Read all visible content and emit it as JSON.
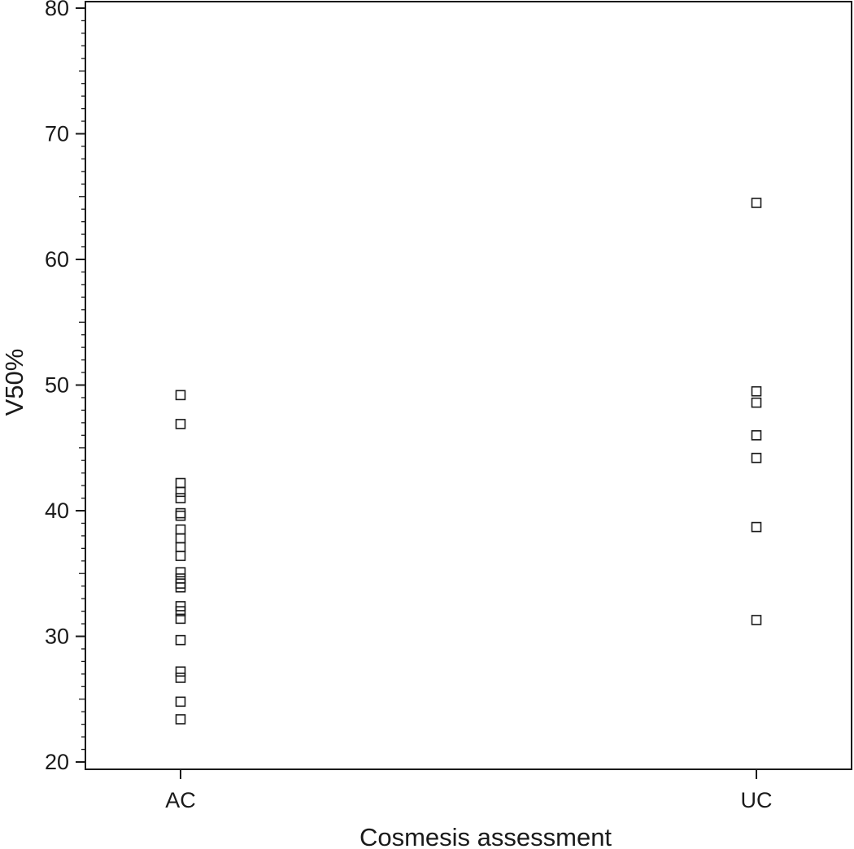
{
  "chart_data": {
    "type": "scatter",
    "title": "",
    "xlabel": "Cosmesis assessment",
    "ylabel": "V50%",
    "categories": [
      "AC",
      "UC"
    ],
    "ylim": [
      20,
      80
    ],
    "yticks": [
      20,
      30,
      40,
      50,
      60,
      70,
      80
    ],
    "grid": false,
    "marker": "open-square",
    "colors": {
      "marker": "#1a1a1a",
      "axis": "#1a1a1a",
      "background": "#ffffff"
    },
    "series": [
      {
        "category": "AC",
        "values": [
          49.2,
          46.9,
          42.2,
          41.5,
          41.0,
          39.8,
          39.6,
          38.5,
          37.8,
          37.1,
          36.4,
          35.1,
          34.6,
          34.2,
          33.9,
          32.4,
          32.0,
          31.4,
          29.7,
          27.2,
          26.7,
          24.8,
          23.4
        ]
      },
      {
        "category": "UC",
        "values": [
          64.5,
          49.5,
          48.6,
          46.0,
          44.2,
          38.7,
          31.3
        ]
      }
    ]
  }
}
